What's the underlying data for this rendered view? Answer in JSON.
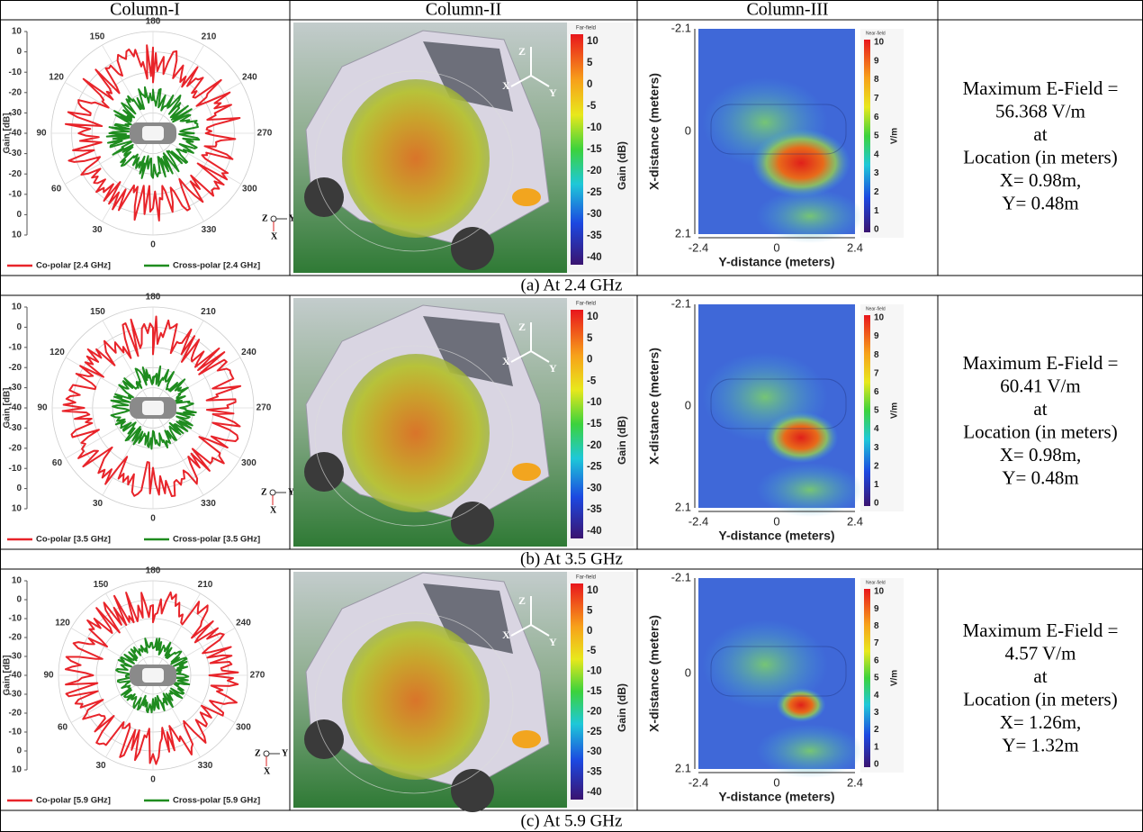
{
  "header": [
    "Column-I",
    "Column-II",
    "Column-III"
  ],
  "polar_axis": {
    "angles": [
      180,
      210,
      240,
      270,
      300,
      330,
      0,
      30,
      60,
      90,
      120,
      150
    ],
    "gains": [
      10,
      0,
      -10,
      -20,
      -30,
      -40,
      -30,
      -20,
      -10,
      0,
      10
    ],
    "y_label": "Gain [dB]",
    "axes": [
      "Z",
      "Y",
      "X"
    ]
  },
  "far_field": {
    "title": "Far-field",
    "ticks": [
      10,
      5,
      0,
      -5,
      -10,
      -15,
      -20,
      -25,
      -30,
      -35,
      -40
    ],
    "label": "Gain (dB)",
    "axes": [
      "Z",
      "X",
      "Y"
    ]
  },
  "near_field": {
    "title": "Near-field",
    "ticks": [
      10,
      9,
      8,
      7,
      6,
      5,
      4,
      3,
      2,
      1,
      0
    ],
    "label": "V/m",
    "v_label": "X-distance (meters)",
    "h_label": "Y-distance (meters)",
    "v_ticks": [
      -2.1,
      0,
      2.1
    ],
    "h_ticks": [
      -2.4,
      0,
      2.4
    ]
  },
  "rows": [
    {
      "caption": "(a) At 2.4 GHz",
      "legend": [
        "Co-polar [2.4 GHz]",
        "Cross-polar [2.4 GHz]"
      ],
      "summary": [
        "Maximum E-Field =",
        "56.368 V/m",
        "at",
        "Location (in meters)",
        "X= 0.98m,",
        "Y= 0.48m"
      ]
    },
    {
      "caption": "(b) At 3.5 GHz",
      "legend": [
        "Co-polar [3.5 GHz]",
        "Cross-polar [3.5 GHz]"
      ],
      "summary": [
        "Maximum E-Field =",
        "60.41 V/m",
        "at",
        "Location (in meters)",
        "X= 0.98m,",
        "Y= 0.48m"
      ]
    },
    {
      "caption": "(c) At 5.9 GHz",
      "legend": [
        "Co-polar [5.9 GHz]",
        "Cross-polar [5.9 GHz]"
      ],
      "summary": [
        "Maximum E-Field =",
        "4.57 V/m",
        "at",
        "Location (in meters)",
        "X= 1.26m,",
        "Y= 1.32m"
      ]
    }
  ]
}
